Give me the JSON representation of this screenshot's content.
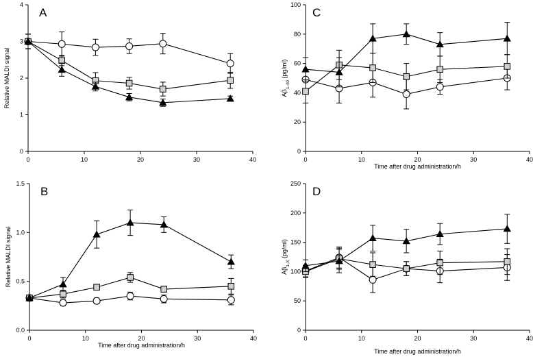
{
  "chart_data": [
    {
      "type": "line",
      "panel_label": "A",
      "xlabel": "",
      "ylabel": "Relative MALDI signal",
      "ylabel_parts": [
        {
          "text": "Relative MALDI signal",
          "sub": false
        }
      ],
      "xlim": [
        0,
        40
      ],
      "ylim": [
        0,
        4
      ],
      "xticks": [
        0,
        10,
        20,
        30,
        40
      ],
      "yticks": [
        0,
        1,
        2,
        3,
        4
      ],
      "ytick_labels": [
        "0",
        "1",
        "2",
        "3",
        "4"
      ],
      "grid": false,
      "series": [
        {
          "name": "circle",
          "marker": "circle",
          "x": [
            0,
            6,
            12,
            18,
            24,
            36
          ],
          "values": [
            3.0,
            2.93,
            2.84,
            2.87,
            2.94,
            2.4
          ],
          "errors": [
            0.2,
            0.33,
            0.22,
            0.2,
            0.28,
            0.27
          ]
        },
        {
          "name": "square",
          "marker": "square",
          "x": [
            0,
            6,
            12,
            18,
            24,
            36
          ],
          "values": [
            3.0,
            2.48,
            1.93,
            1.86,
            1.7,
            1.94
          ],
          "errors": [
            0.2,
            0.14,
            0.22,
            0.16,
            0.19,
            0.22
          ]
        },
        {
          "name": "triangle",
          "marker": "triangle",
          "x": [
            0,
            6,
            12,
            18,
            24,
            36
          ],
          "values": [
            3.0,
            2.23,
            1.77,
            1.48,
            1.33,
            1.44
          ],
          "errors": [
            0.2,
            0.18,
            0.12,
            0.1,
            0.1,
            0.07
          ]
        }
      ]
    },
    {
      "type": "line",
      "panel_label": "B",
      "xlabel": "Time after drug administration/h",
      "ylabel": "Relative MALDI signal",
      "ylabel_parts": [
        {
          "text": "Relative MALDI signal",
          "sub": false
        }
      ],
      "xlim": [
        0,
        40
      ],
      "ylim": [
        0,
        1.5
      ],
      "xticks": [
        0,
        10,
        20,
        30,
        40
      ],
      "yticks": [
        0,
        0.5,
        1.0,
        1.5
      ],
      "ytick_labels": [
        "0.0",
        "0.5",
        "1.0",
        "1.5"
      ],
      "grid": false,
      "series": [
        {
          "name": "circle",
          "marker": "circle",
          "x": [
            0,
            6,
            12,
            18,
            24,
            36
          ],
          "values": [
            0.33,
            0.28,
            0.3,
            0.35,
            0.32,
            0.31
          ],
          "errors": [
            0.03,
            0.03,
            0.03,
            0.04,
            0.04,
            0.05
          ]
        },
        {
          "name": "square",
          "marker": "square",
          "x": [
            0,
            6,
            12,
            18,
            24,
            36
          ],
          "values": [
            0.33,
            0.37,
            0.44,
            0.54,
            0.42,
            0.45
          ],
          "errors": [
            0.03,
            0.04,
            0.03,
            0.05,
            0.03,
            0.08
          ]
        },
        {
          "name": "triangle",
          "marker": "triangle",
          "x": [
            0,
            6,
            12,
            18,
            24,
            36
          ],
          "values": [
            0.33,
            0.47,
            0.98,
            1.1,
            1.08,
            0.7
          ],
          "errors": [
            0.03,
            0.07,
            0.14,
            0.13,
            0.08,
            0.07
          ]
        }
      ]
    },
    {
      "type": "line",
      "panel_label": "C",
      "xlabel": "Time after drug administration/h",
      "ylabel": "Aβ1-40 (pg/ml)",
      "ylabel_parts": [
        {
          "text": "Aβ",
          "sub": false
        },
        {
          "text": "1-40",
          "sub": true
        },
        {
          "text": " (pg/ml)",
          "sub": false
        }
      ],
      "xlim": [
        0,
        40
      ],
      "ylim": [
        0,
        100
      ],
      "xticks": [
        0,
        10,
        20,
        30,
        40
      ],
      "yticks": [
        0,
        20,
        40,
        60,
        80,
        100
      ],
      "ytick_labels": [
        "0",
        "20",
        "40",
        "60",
        "80",
        "100"
      ],
      "grid": false,
      "series": [
        {
          "name": "circle",
          "marker": "circle",
          "x": [
            0,
            6,
            12,
            18,
            24,
            36
          ],
          "values": [
            49,
            43,
            47,
            39,
            44,
            50
          ],
          "errors": [
            7,
            10,
            10,
            10,
            5,
            8
          ]
        },
        {
          "name": "square",
          "marker": "square",
          "x": [
            0,
            6,
            12,
            18,
            24,
            36
          ],
          "values": [
            41,
            59,
            57,
            51,
            56,
            58
          ],
          "errors": [
            8,
            10,
            10,
            9,
            9,
            8
          ]
        },
        {
          "name": "triangle",
          "marker": "triangle",
          "x": [
            0,
            6,
            12,
            18,
            24,
            36
          ],
          "values": [
            56,
            54,
            77,
            80,
            73,
            77
          ],
          "errors": [
            8,
            10,
            10,
            7,
            8,
            11
          ]
        }
      ]
    },
    {
      "type": "line",
      "panel_label": "D",
      "xlabel": "Time after drug administration/h",
      "ylabel": "Aβ1-X (pg/ml)",
      "ylabel_parts": [
        {
          "text": "Aβ",
          "sub": false
        },
        {
          "text": "1-X",
          "sub": true
        },
        {
          "text": " (pg/ml)",
          "sub": false
        }
      ],
      "xlim": [
        0,
        40
      ],
      "ylim": [
        0,
        250
      ],
      "xticks": [
        0,
        10,
        20,
        30,
        40
      ],
      "yticks": [
        0,
        50,
        100,
        150,
        200,
        250
      ],
      "ytick_labels": [
        "0",
        "50",
        "100",
        "150",
        "200",
        "250"
      ],
      "grid": false,
      "series": [
        {
          "name": "circle",
          "marker": "circle",
          "x": [
            0,
            6,
            12,
            18,
            24,
            36
          ],
          "values": [
            101,
            124,
            86,
            105,
            101,
            107
          ],
          "errors": [
            10,
            18,
            22,
            12,
            20,
            22
          ]
        },
        {
          "name": "square",
          "marker": "square",
          "x": [
            0,
            6,
            12,
            18,
            24,
            36
          ],
          "values": [
            100,
            122,
            112,
            105,
            115,
            117
          ],
          "errors": [
            10,
            18,
            20,
            12,
            20,
            22
          ]
        },
        {
          "name": "triangle",
          "marker": "triangle",
          "x": [
            0,
            6,
            12,
            18,
            24,
            36
          ],
          "values": [
            110,
            118,
            157,
            152,
            164,
            173
          ],
          "errors": [
            10,
            20,
            22,
            20,
            18,
            25
          ]
        }
      ]
    }
  ]
}
